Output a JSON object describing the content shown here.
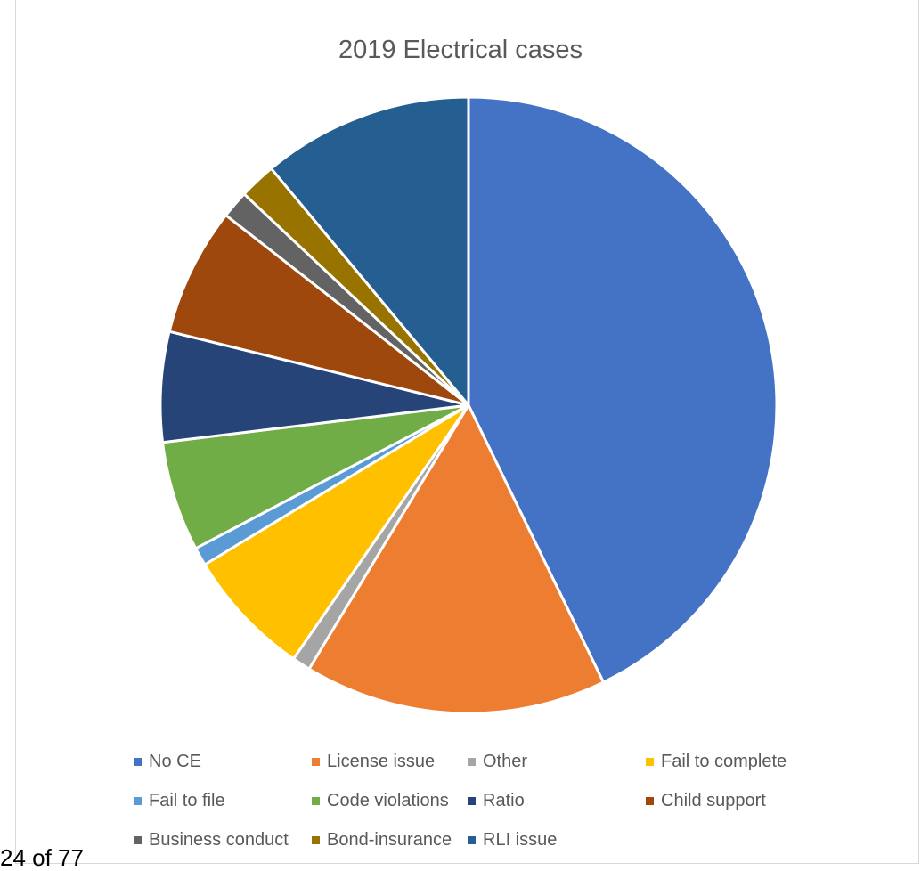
{
  "chart_data": {
    "type": "pie",
    "title": "2019 Electrical cases",
    "legend_position": "bottom",
    "slices": [
      {
        "label": "No CE",
        "value": 44.5,
        "color": "#4472C4"
      },
      {
        "label": "License issue",
        "value": 16.5,
        "color": "#ED7D31"
      },
      {
        "label": "Other",
        "value": 1.0,
        "color": "#A5A5A5"
      },
      {
        "label": "Fail to complete",
        "value": 7.0,
        "color": "#FFC000"
      },
      {
        "label": "Fail to file",
        "value": 1.0,
        "color": "#5B9BD5"
      },
      {
        "label": "Code violations",
        "value": 6.0,
        "color": "#70AD47"
      },
      {
        "label": "Ratio",
        "value": 6.0,
        "color": "#264478"
      },
      {
        "label": "Child support",
        "value": 7.0,
        "color": "#9E480E"
      },
      {
        "label": "Business conduct",
        "value": 1.5,
        "color": "#636363"
      },
      {
        "label": "Bond-insurance",
        "value": 2.0,
        "color": "#997300"
      },
      {
        "label": "RLI issue",
        "value": 11.5,
        "color": "#255E91"
      }
    ]
  },
  "page_footer": "24 of 77"
}
